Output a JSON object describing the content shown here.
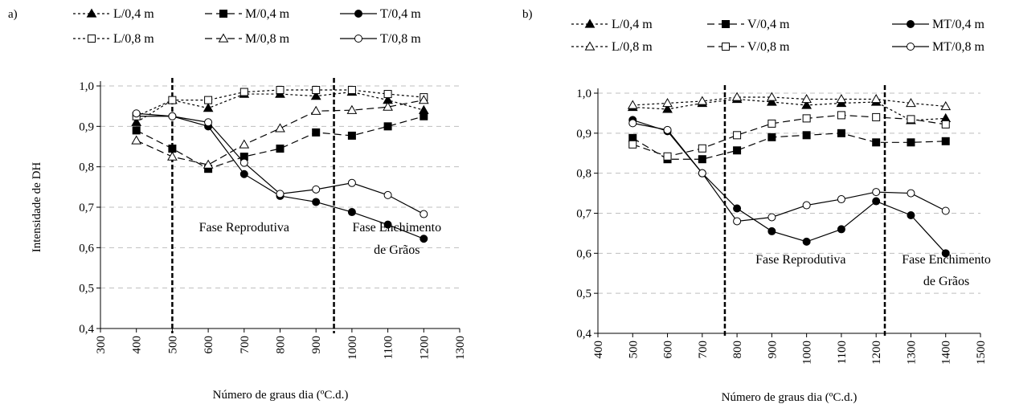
{
  "chart_data": [
    {
      "type": "line",
      "panel_label": "a)",
      "xlabel": "Número de graus dia (ºC.d.)",
      "ylabel": "Intensidade de DH",
      "xlim": [
        300,
        1300
      ],
      "ylim": [
        0.4,
        1.0
      ],
      "x_ticks": [
        "300",
        "400",
        "500",
        "600",
        "700",
        "800",
        "900",
        "1000",
        "1100",
        "1200",
        "1300"
      ],
      "y_ticks": [
        "0,4",
        "0,5",
        "0,6",
        "0,7",
        "0,8",
        "0,9",
        "1,0"
      ],
      "grid": "horizontal dashed",
      "x": [
        400,
        500,
        600,
        700,
        800,
        900,
        1000,
        1100,
        1200
      ],
      "series": [
        {
          "name": "L/0,4 m",
          "line": "dotted",
          "marker": "triangle-filled",
          "values": [
            0.91,
            0.965,
            0.945,
            0.98,
            0.98,
            0.975,
            0.985,
            0.965,
            0.94
          ]
        },
        {
          "name": "M/0,4 m",
          "line": "dashed",
          "marker": "square-filled",
          "values": [
            0.89,
            0.845,
            0.795,
            0.825,
            0.845,
            0.885,
            0.877,
            0.9,
            0.925
          ]
        },
        {
          "name": "T/0,4 m",
          "line": "solid",
          "marker": "circle-filled",
          "values": [
            0.925,
            0.925,
            0.9,
            0.782,
            0.728,
            0.713,
            0.688,
            0.657,
            0.622
          ]
        },
        {
          "name": "L/0,8 m",
          "line": "dotted",
          "marker": "square-open",
          "values": [
            0.925,
            0.965,
            0.965,
            0.985,
            0.99,
            0.99,
            0.99,
            0.98,
            0.972
          ]
        },
        {
          "name": "M/0,8 m",
          "line": "dashed",
          "marker": "triangle-open",
          "values": [
            0.865,
            0.825,
            0.805,
            0.855,
            0.895,
            0.938,
            0.94,
            0.948,
            0.965
          ]
        },
        {
          "name": "T/0,8 m",
          "line": "solid",
          "marker": "circle-open",
          "values": [
            0.932,
            0.925,
            0.91,
            0.81,
            0.733,
            0.744,
            0.76,
            0.73,
            0.683
          ]
        }
      ],
      "phase_lines": [
        500,
        950
      ],
      "annotations": [
        {
          "text": "Fase Reprodutiva",
          "x": 700,
          "y": 0.64
        },
        {
          "text": "Fase Enchimento",
          "x": 1125,
          "y": 0.64
        },
        {
          "text": "de Grãos",
          "x": 1125,
          "y": 0.585
        }
      ]
    },
    {
      "type": "line",
      "panel_label": "b)",
      "xlabel": "Número de graus dia (ºC.d.)",
      "ylabel": "",
      "xlim": [
        400,
        1500
      ],
      "ylim": [
        0.4,
        1.0
      ],
      "x_ticks": [
        "400",
        "500",
        "600",
        "700",
        "800",
        "900",
        "1000",
        "1100",
        "1200",
        "1300",
        "1400",
        "1500"
      ],
      "y_ticks": [
        "0,4",
        "0,5",
        "0,6",
        "0,7",
        "0,8",
        "0,9",
        "1,0"
      ],
      "grid": "horizontal dashed",
      "x": [
        500,
        600,
        700,
        800,
        900,
        1000,
        1100,
        1200,
        1300,
        1400
      ],
      "series": [
        {
          "name": "L/0,4 m",
          "line": "dotted",
          "marker": "triangle-filled",
          "values": [
            0.965,
            0.96,
            0.975,
            0.985,
            0.978,
            0.97,
            0.975,
            0.978,
            0.932,
            0.937
          ]
        },
        {
          "name": "V/0,4 m",
          "line": "dashed",
          "marker": "square-filled",
          "values": [
            0.888,
            0.835,
            0.835,
            0.857,
            0.89,
            0.895,
            0.9,
            0.877,
            0.877,
            0.88
          ]
        },
        {
          "name": "MT/0,4 m",
          "line": "solid",
          "marker": "circle-filled",
          "values": [
            0.933,
            0.905,
            0.8,
            0.712,
            0.655,
            0.629,
            0.66,
            0.73,
            0.695,
            0.6
          ]
        },
        {
          "name": "L/0,8 m",
          "line": "dotted",
          "marker": "triangle-open",
          "values": [
            0.97,
            0.975,
            0.98,
            0.99,
            0.99,
            0.985,
            0.985,
            0.985,
            0.975,
            0.967
          ]
        },
        {
          "name": "V/0,8 m",
          "line": "dashed",
          "marker": "square-open",
          "values": [
            0.872,
            0.842,
            0.862,
            0.895,
            0.924,
            0.937,
            0.945,
            0.94,
            0.935,
            0.922
          ]
        },
        {
          "name": "MT/0,8 m",
          "line": "solid",
          "marker": "circle-open",
          "values": [
            0.925,
            0.908,
            0.8,
            0.68,
            0.69,
            0.72,
            0.735,
            0.753,
            0.75,
            0.706
          ]
        }
      ],
      "phase_lines": [
        765,
        1225
      ],
      "annotations": [
        {
          "text": "Fase Reprodutiva",
          "x": 983,
          "y": 0.575
        },
        {
          "text": "Fase Enchimento",
          "x": 1402,
          "y": 0.575
        },
        {
          "text": "de Grãos",
          "x": 1402,
          "y": 0.52
        }
      ]
    }
  ]
}
